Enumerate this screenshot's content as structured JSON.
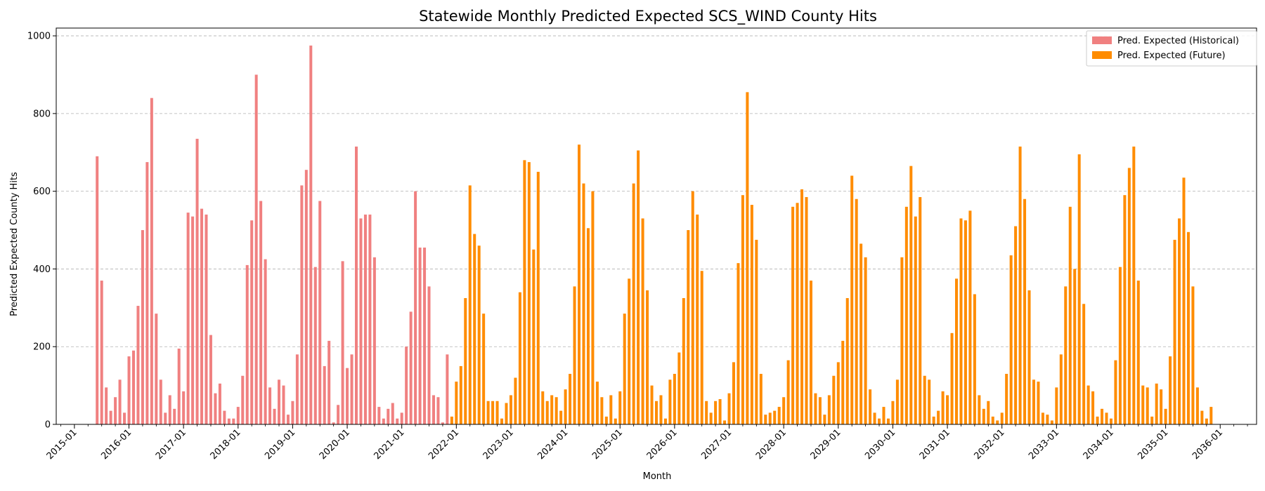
{
  "chart_data": {
    "type": "bar",
    "title": "Statewide Monthly Predicted Expected SCS_WIND County Hits",
    "xlabel": "Month",
    "ylabel": "Predicted Expected County Hits",
    "ylim": [
      0,
      1020
    ],
    "xlim": [
      "2014-09",
      "2036-09"
    ],
    "yticks": [
      0,
      200,
      400,
      600,
      800,
      1000
    ],
    "xticks": [
      "2015-01",
      "2016-01",
      "2017-01",
      "2018-01",
      "2019-01",
      "2020-01",
      "2021-01",
      "2022-01",
      "2023-01",
      "2024-01",
      "2025-01",
      "2026-01",
      "2027-01",
      "2028-01",
      "2029-01",
      "2030-01",
      "2031-01",
      "2032-01",
      "2033-01",
      "2034-01",
      "2035-01",
      "2036-01"
    ],
    "grid": "horizontal dashed",
    "legend_position": "top-right",
    "series": [
      {
        "name": "Pred. Expected (Historical)",
        "color": "#f08080",
        "start": "2015-06",
        "values": [
          690,
          370,
          95,
          35,
          70,
          115,
          30,
          175,
          190,
          305,
          500,
          675,
          840,
          285,
          115,
          30,
          75,
          40,
          195,
          85,
          545,
          535,
          735,
          555,
          540,
          230,
          80,
          105,
          35,
          15,
          15,
          45,
          125,
          410,
          525,
          900,
          575,
          425,
          95,
          40,
          115,
          100,
          25,
          60,
          180,
          615,
          655,
          975,
          405,
          575,
          150,
          215,
          5,
          50,
          420,
          145,
          180,
          715,
          530,
          540,
          540,
          430,
          45,
          15,
          40,
          55,
          15,
          30,
          200,
          290,
          600,
          455,
          455,
          355,
          75,
          70,
          5,
          180
        ]
      },
      {
        "name": "Pred. Expected (Future)",
        "color": "#ff8c00",
        "start": "2021-12",
        "values": [
          20,
          110,
          150,
          325,
          615,
          490,
          460,
          285,
          60,
          60,
          60,
          15,
          55,
          75,
          120,
          340,
          680,
          675,
          450,
          650,
          85,
          60,
          75,
          70,
          35,
          90,
          130,
          355,
          720,
          620,
          505,
          600,
          110,
          70,
          20,
          75,
          15,
          85,
          285,
          375,
          620,
          705,
          530,
          345,
          100,
          60,
          75,
          15,
          115,
          130,
          185,
          325,
          500,
          600,
          540,
          395,
          60,
          30,
          60,
          65,
          10,
          80,
          160,
          415,
          590,
          855,
          565,
          475,
          130,
          25,
          30,
          35,
          45,
          70,
          165,
          560,
          570,
          605,
          585,
          370,
          80,
          70,
          25,
          75,
          125,
          160,
          215,
          325,
          640,
          580,
          465,
          430,
          90,
          30,
          15,
          45,
          15,
          60,
          115,
          430,
          560,
          665,
          535,
          585,
          125,
          115,
          20,
          35,
          85,
          75,
          235,
          375,
          530,
          525,
          550,
          335,
          75,
          40,
          60,
          20,
          10,
          30,
          130,
          435,
          510,
          715,
          580,
          345,
          115,
          110,
          30,
          25,
          10,
          95,
          180,
          355,
          560,
          400,
          695,
          310,
          100,
          85,
          20,
          40,
          30,
          15,
          165,
          405,
          590,
          660,
          715,
          370,
          100,
          95,
          20,
          105,
          90,
          40,
          175,
          475,
          530,
          635,
          495,
          355,
          95,
          35,
          15,
          45
        ]
      }
    ]
  }
}
